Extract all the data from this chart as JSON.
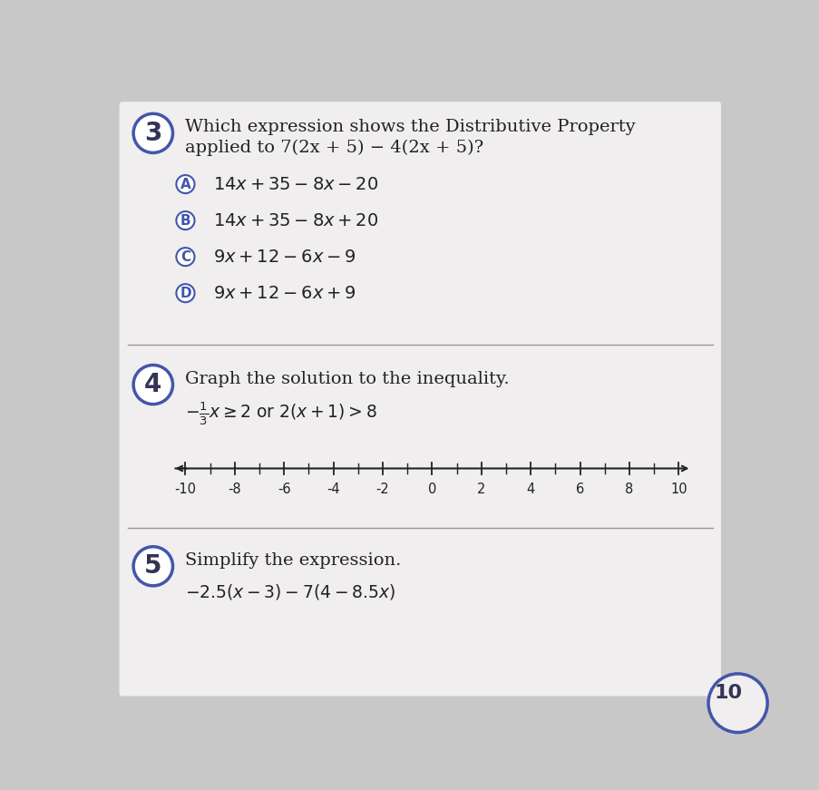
{
  "outer_bg": "#c8c8c8",
  "card_bg": "#f0eeee",
  "circle_edge_color": "#4455aa",
  "circle_fill": "white",
  "circle_text_color": "#333355",
  "text_color": "#222222",
  "divider_color": "#999999",
  "q3_number": "3",
  "q3_line1": "Which expression shows the Distributive Property",
  "q3_line2": "applied to 7(2x + 5) − 4(2x + 5)?",
  "q4_number": "4",
  "q4_prompt": "Graph the solution to the inequality.",
  "q4_ineq_latex": "$-\\frac{1}{3}x \\geq 2$ or $2(x + 1) > 8$",
  "numberline_min": -10,
  "numberline_max": 10,
  "numberline_ticks": [
    -10,
    -8,
    -6,
    -4,
    -2,
    0,
    2,
    4,
    6,
    8,
    10
  ],
  "q5_number": "5",
  "q5_prompt": "Simplify the expression.",
  "q5_expr_latex": "$-2.5(x - 3) - 7(4 - 8.5x)$",
  "circle10_text": "10"
}
